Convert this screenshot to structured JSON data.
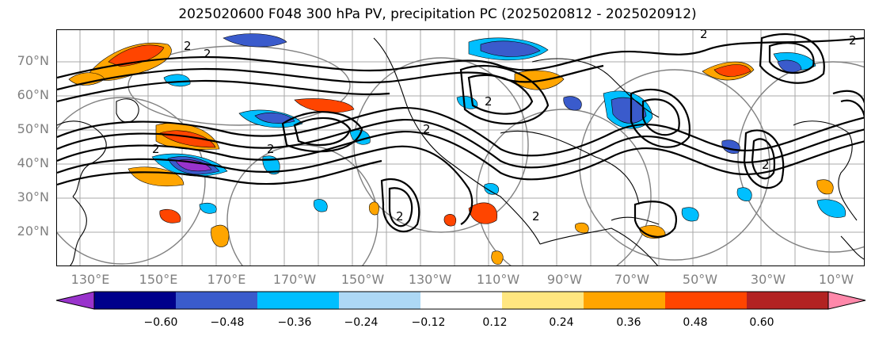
{
  "title": "2025020600 F048 300 hPa PV, precipitation PC (2025020812 - 2025020912)",
  "lat_ticks": [
    "70°N",
    "60°N",
    "50°N",
    "40°N",
    "30°N",
    "20°N"
  ],
  "lon_ticks": [
    "130°E",
    "150°E",
    "170°E",
    "170°W",
    "150°W",
    "130°W",
    "110°W",
    "90°W",
    "70°W",
    "50°W",
    "30°W",
    "10°W"
  ],
  "colorbar": {
    "levels": [
      "−0.60",
      "−0.48",
      "−0.36",
      "−0.24",
      "−0.12",
      "0.12",
      "0.24",
      "0.36",
      "0.48",
      "0.60"
    ],
    "colors": [
      "#9933cc",
      "#00008b",
      "#3a5bcc",
      "#00bfff",
      "#add8f5",
      "#ffffff",
      "#ffe680",
      "#ffa500",
      "#ff4500",
      "#b22222",
      "#ff88aa"
    ]
  },
  "contour_labels": [
    "2",
    "2",
    "2",
    "2",
    "2",
    "2",
    "2",
    "2",
    "2",
    "2",
    "2"
  ],
  "colors": {
    "contour": "#000000",
    "graticule": "#a0a0a0",
    "range_rings": "#808080",
    "coastline": "#000000"
  }
}
